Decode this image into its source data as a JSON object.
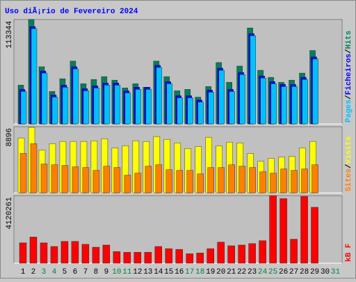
{
  "chart_data": [
    {
      "type": "bar",
      "title": "Uso diÃ¡rio de Fevereiro 2024",
      "title_color": "#0000ff",
      "ylim": [
        0,
        113344
      ],
      "yticks": [
        113344
      ],
      "legend_separator": "/",
      "series": [
        {
          "name": "Hits",
          "color": "#00805c",
          "values": [
            42130,
            113344,
            62030,
            35230,
            49010,
            68160,
            43650,
            48250,
            51310,
            47480,
            39060,
            43650,
            39820,
            68160,
            51310,
            35990,
            37520,
            29100,
            40590,
            66630,
            45180,
            62800,
            104150,
            58200,
            50540,
            45180,
            47480,
            55140,
            79650,
            null,
            null
          ]
        },
        {
          "name": "Ficheiros",
          "color": "#0000ff",
          "values": [
            37530,
            105680,
            57440,
            31400,
            42120,
            62030,
            38290,
            41360,
            44420,
            44420,
            36000,
            39820,
            39820,
            63570,
            45950,
            30640,
            30640,
            26040,
            36760,
            60500,
            37530,
            55910,
            98030,
            52080,
            45950,
            42890,
            42890,
            50550,
            72750,
            null,
            null
          ]
        },
        {
          "name": "Pages",
          "color": "#00c0ff",
          "values": [
            35230,
            103380,
            55140,
            29100,
            39820,
            59730,
            35990,
            39060,
            42120,
            42120,
            33700,
            37520,
            37520,
            61270,
            43650,
            28340,
            28340,
            23740,
            34460,
            58200,
            35230,
            53610,
            95730,
            49780,
            43650,
            40590,
            40590,
            48250,
            70450,
            null,
            null
          ]
        }
      ]
    },
    {
      "type": "bar",
      "ylim": [
        0,
        8896
      ],
      "yticks": [
        8896
      ],
      "legend_separator": "/",
      "series": [
        {
          "name": "Visits",
          "color": "#ffff00",
          "values": [
            7380,
            8800,
            5770,
            6620,
            6910,
            6910,
            6910,
            7000,
            7280,
            6050,
            6340,
            7000,
            6910,
            7570,
            7190,
            6720,
            5960,
            6240,
            7470,
            6340,
            6810,
            6720,
            5300,
            4260,
            4640,
            4820,
            4920,
            6050,
            6910,
            null,
            null
          ]
        },
        {
          "name": "Sites",
          "color": "#ff8000",
          "values": [
            5300,
            6620,
            3880,
            3780,
            3690,
            3500,
            3410,
            3030,
            3590,
            3410,
            2370,
            2650,
            3590,
            3780,
            3120,
            3030,
            3030,
            2550,
            3410,
            3410,
            3780,
            3590,
            3410,
            2840,
            2650,
            3220,
            3030,
            3220,
            3780,
            null,
            null
          ]
        }
      ]
    },
    {
      "type": "bar",
      "ylim": [
        0,
        4120261
      ],
      "yticks": [
        4120261
      ],
      "categories": [
        "1",
        "2",
        "3",
        "4",
        "5",
        "6",
        "7",
        "8",
        "9",
        "10",
        "11",
        "12",
        "13",
        "14",
        "15",
        "16",
        "17",
        "18",
        "19",
        "20",
        "21",
        "22",
        "23",
        "24",
        "25",
        "26",
        "27",
        "28",
        "29",
        "30",
        "31"
      ],
      "category_colors": [
        "#000000",
        "#000000",
        "#008040",
        "#008040",
        "#000000",
        "#000000",
        "#000000",
        "#000000",
        "#000000",
        "#008040",
        "#008040",
        "#000000",
        "#000000",
        "#000000",
        "#000000",
        "#000000",
        "#008040",
        "#008040",
        "#000000",
        "#000000",
        "#000000",
        "#000000",
        "#000000",
        "#008040",
        "#008040",
        "#000000",
        "#000000",
        "#000000",
        "#000000",
        "#000000",
        "#008040"
      ],
      "series": [
        {
          "name": "kB F",
          "color": "#ff0000",
          "values": [
            1240400,
            1594800,
            1240400,
            1018900,
            1329000,
            1329000,
            1151800,
            974600,
            1107500,
            708800,
            664500,
            664500,
            664500,
            1018900,
            886000,
            841700,
            575900,
            620200,
            886000,
            1284700,
            1063200,
            1107500,
            1196100,
            1373300,
            4120261,
            3942700,
            1461900,
            4075600,
            3411100,
            null,
            null
          ]
        }
      ]
    }
  ]
}
